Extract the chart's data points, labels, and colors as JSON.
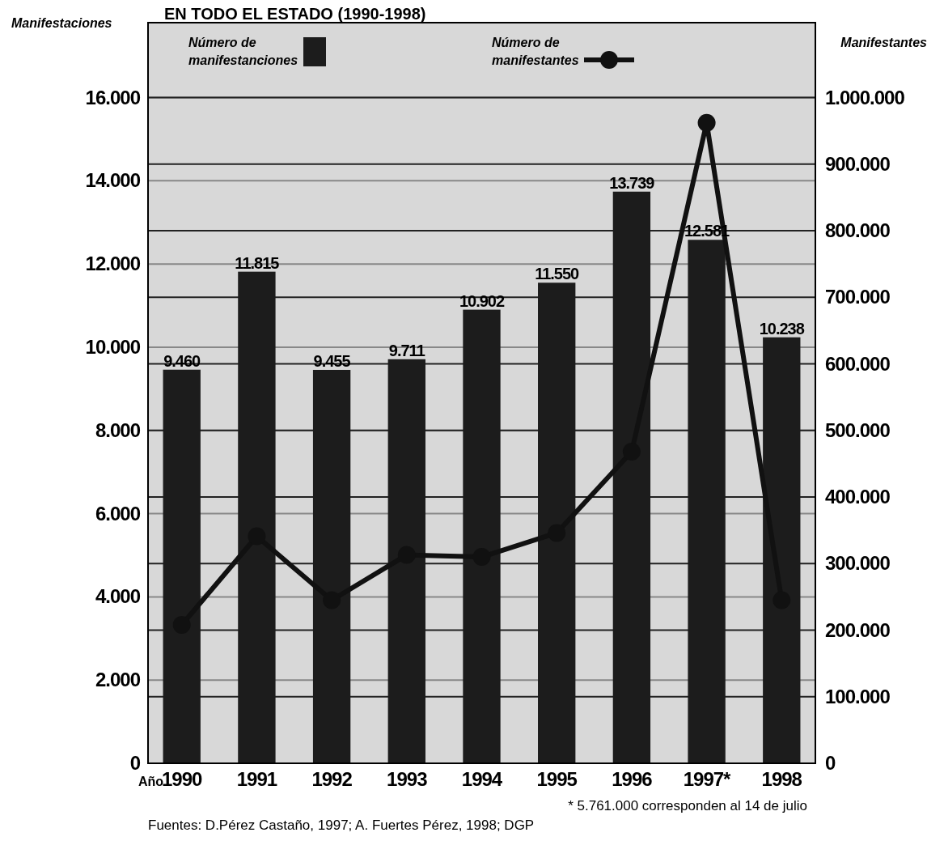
{
  "chart_data": {
    "type": "bar",
    "title": "EN TODO EL ESTADO (1990-1998)",
    "xlabel": "Año",
    "ylabel": "Manifestaciones",
    "y2label": "Manifestantes",
    "categories": [
      "1990",
      "1991",
      "1992",
      "1993",
      "1994",
      "1995",
      "1996",
      "1997*",
      "1998"
    ],
    "series": [
      {
        "name": "Número de manifestanciones",
        "color": "#1c1c1c",
        "values": [
          9460,
          11815,
          9455,
          9711,
          10902,
          11550,
          13739,
          12581,
          10238
        ],
        "value_labels": [
          "9.460",
          "11.815",
          "9.455",
          "9.711",
          "10.902",
          "11.550",
          "13.739",
          "12.581",
          "10.238"
        ]
      },
      {
        "name": "Número de manifestantes",
        "type": "line",
        "axis": "y2",
        "color": "#111111",
        "marker": "circle",
        "values": [
          208000,
          341000,
          245000,
          313000,
          310000,
          346000,
          468000,
          962000,
          245000
        ]
      }
    ],
    "ylim": [
      0,
      17800
    ],
    "yticks": [
      {
        "value": 0,
        "label": "0"
      },
      {
        "value": 2000,
        "label": "2.000"
      },
      {
        "value": 4000,
        "label": "4.000"
      },
      {
        "value": 6000,
        "label": "6.000"
      },
      {
        "value": 8000,
        "label": "8.000"
      },
      {
        "value": 10000,
        "label": "10.000"
      },
      {
        "value": 12000,
        "label": "12.000"
      },
      {
        "value": 14000,
        "label": "14.000"
      },
      {
        "value": 16000,
        "label": "16.000"
      }
    ],
    "y2lim": [
      0,
      1112500
    ],
    "y2ticks": [
      {
        "value": 0,
        "label": "0"
      },
      {
        "value": 100000,
        "label": "100.000"
      },
      {
        "value": 200000,
        "label": "200.000"
      },
      {
        "value": 300000,
        "label": "300.000"
      },
      {
        "value": 400000,
        "label": "400.000"
      },
      {
        "value": 500000,
        "label": "500.000"
      },
      {
        "value": 600000,
        "label": "600.000"
      },
      {
        "value": 700000,
        "label": "700.000"
      },
      {
        "value": 800000,
        "label": "800.000"
      },
      {
        "value": 900000,
        "label": "900.000"
      },
      {
        "value": 1000000,
        "label": "1.000.000"
      }
    ],
    "grid": true,
    "legend": "top",
    "annotations": [
      "* 5.761.000 corresponden al 14 de julio",
      "Fuentes: D.Pérez Castaño, 1997; A. Fuertes Pérez, 1998; DGP"
    ]
  }
}
